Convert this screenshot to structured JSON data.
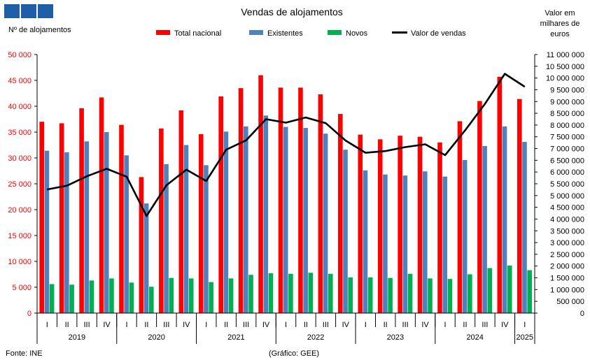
{
  "logo": {
    "color": "#1f5fa8",
    "blocks": 3
  },
  "chart_data": {
    "type": "bar",
    "title": "Vendas de alojamentos",
    "ylabel": "Nº de alojamentos",
    "y2label": [
      "Valor em",
      "milhares de",
      "euros"
    ],
    "source": "Fonte: INE",
    "credit": "(Gráfico: GEE)",
    "ylim": [
      0,
      50000
    ],
    "yticks": [
      "0",
      "5 000",
      "10 000",
      "15 000",
      "20 000",
      "25 000",
      "30 000",
      "35 000",
      "40 000",
      "45 000",
      "50 000"
    ],
    "y2lim": [
      0,
      11000000
    ],
    "y2ticks": [
      "0",
      "500 000",
      "1 000 000",
      "1 500 000",
      "2 000 000",
      "2 500 000",
      "3 000 000",
      "3 500 000",
      "4 000 000",
      "4 500 000",
      "5 000 000",
      "5 500 000",
      "6 000 000",
      "6 500 000",
      "7 000 000",
      "7 500 000",
      "8 000 000",
      "8 500 000",
      "9 000 000",
      "9 500 000",
      "10 000 000",
      "10 500 000",
      "11 000 000"
    ],
    "legend_position": "top",
    "categories": [
      "I",
      "II",
      "III",
      "IV",
      "I",
      "II",
      "III",
      "IV",
      "I",
      "II",
      "III",
      "IV",
      "I",
      "II",
      "III",
      "IV",
      "I",
      "II",
      "III",
      "IV",
      "I",
      "II",
      "III",
      "IV",
      "I"
    ],
    "years": [
      {
        "label": "2019",
        "count": 4
      },
      {
        "label": "2020",
        "count": 4
      },
      {
        "label": "2021",
        "count": 4
      },
      {
        "label": "2022",
        "count": 4
      },
      {
        "label": "2023",
        "count": 4
      },
      {
        "label": "2024",
        "count": 4
      },
      {
        "label": "2025",
        "count": 1
      }
    ],
    "series": [
      {
        "name": "Total nacional",
        "kind": "bar",
        "color": "#ff0000",
        "values": [
          37000,
          36700,
          39600,
          41700,
          36400,
          26300,
          35700,
          39200,
          34600,
          41900,
          43500,
          46000,
          43600,
          43600,
          42300,
          38500,
          34500,
          33600,
          34300,
          34100,
          33000,
          37100,
          41000,
          45700,
          41400
        ]
      },
      {
        "name": "Existentes",
        "kind": "bar",
        "color": "#4f81bd",
        "values": [
          31400,
          31100,
          33200,
          35000,
          30500,
          21200,
          28800,
          32500,
          28600,
          35100,
          36100,
          38200,
          36000,
          35800,
          34700,
          31600,
          27600,
          26800,
          26600,
          27400,
          26400,
          29600,
          32300,
          36100,
          33100
        ]
      },
      {
        "name": "Novos",
        "kind": "bar",
        "color": "#00b050",
        "values": [
          5600,
          5500,
          6300,
          6700,
          5900,
          5100,
          6800,
          6700,
          6000,
          6700,
          7400,
          7700,
          7600,
          7800,
          7600,
          6900,
          6900,
          6800,
          7600,
          6700,
          6600,
          7500,
          8700,
          9200,
          8300
        ]
      },
      {
        "name": "Valor de vendas",
        "kind": "line",
        "axis": "right",
        "color": "#000000",
        "values": [
          5260000,
          5420000,
          5820000,
          6140000,
          5800000,
          4130000,
          5440000,
          6100000,
          5620000,
          6950000,
          7350000,
          8250000,
          8100000,
          8320000,
          8080000,
          7340000,
          6820000,
          6890000,
          7060000,
          7180000,
          6720000,
          7770000,
          8900000,
          10180000,
          9630000
        ]
      }
    ]
  }
}
